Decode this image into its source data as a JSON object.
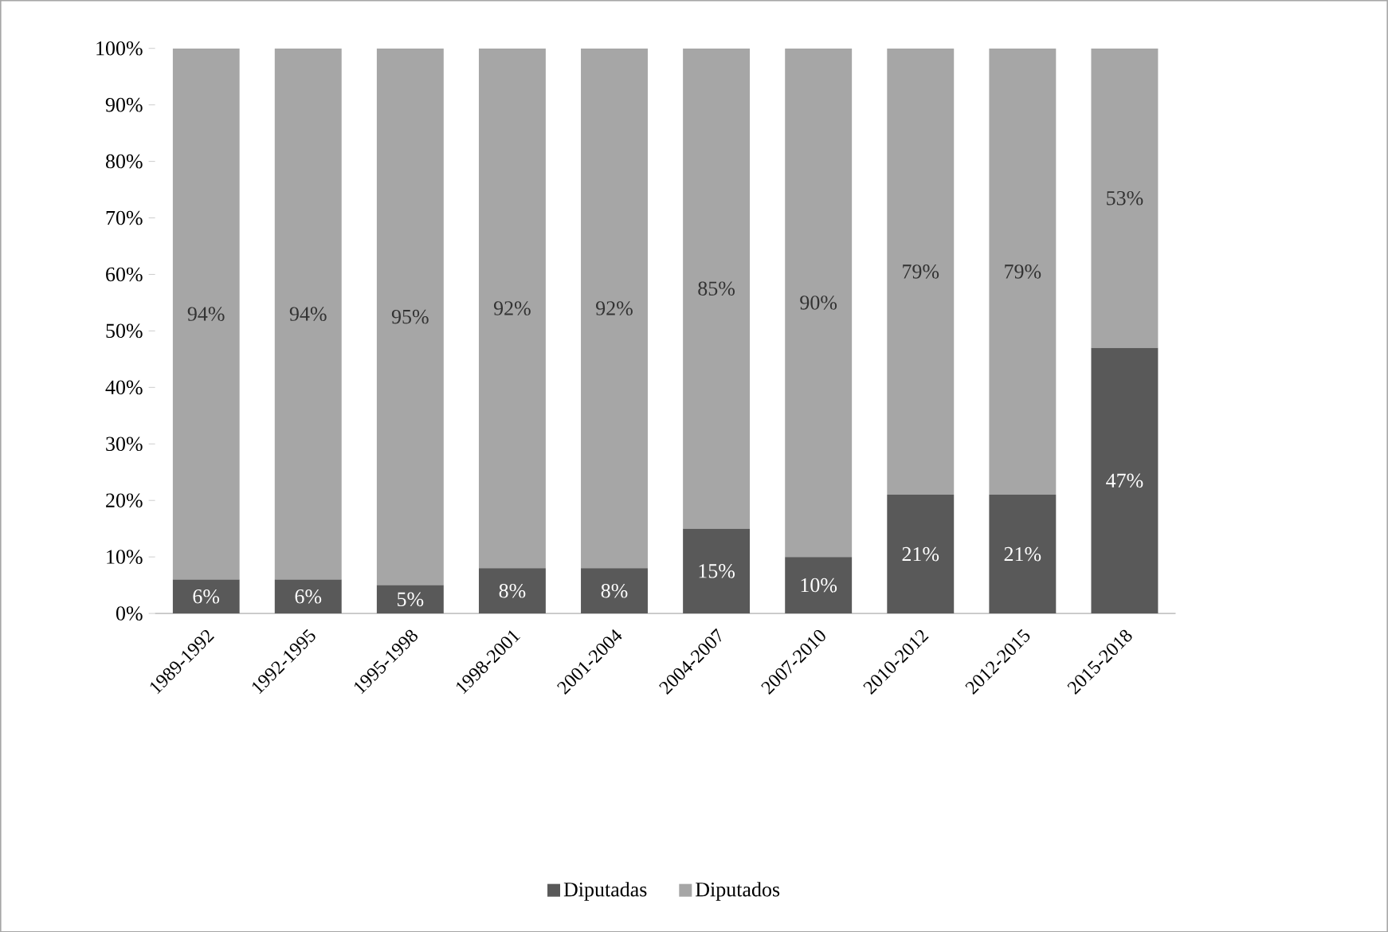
{
  "chart_data": {
    "type": "bar",
    "stacked": true,
    "categories": [
      "1989-1992",
      "1992-1995",
      "1995-1998",
      "1998-2001",
      "2001-2004",
      "2004-2007",
      "2007-2010",
      "2010-2012",
      "2012-2015",
      "2015-2018"
    ],
    "series": [
      {
        "name": "Diputadas",
        "color": "#595959",
        "values": [
          6,
          6,
          5,
          8,
          8,
          15,
          10,
          21,
          21,
          47
        ],
        "value_labels": [
          "6%",
          "6%",
          "5%",
          "8%",
          "8%",
          "15%",
          "10%",
          "21%",
          "21%",
          "47%"
        ]
      },
      {
        "name": "Diputados",
        "color": "#a6a6a6",
        "values": [
          94,
          94,
          95,
          92,
          92,
          85,
          90,
          79,
          79,
          53
        ],
        "value_labels": [
          "94%",
          "94%",
          "95%",
          "92%",
          "92%",
          "85%",
          "90%",
          "79%",
          "79%",
          "53%"
        ]
      }
    ],
    "ylim": [
      0,
      100
    ],
    "yticks": [
      {
        "value": 0,
        "label": "0%"
      },
      {
        "value": 10,
        "label": "10%"
      },
      {
        "value": 20,
        "label": "20%"
      },
      {
        "value": 30,
        "label": "30%"
      },
      {
        "value": 40,
        "label": "40%"
      },
      {
        "value": 50,
        "label": "50%"
      },
      {
        "value": 60,
        "label": "60%"
      },
      {
        "value": 70,
        "label": "70%"
      },
      {
        "value": 80,
        "label": "80%"
      },
      {
        "value": 90,
        "label": "90%"
      },
      {
        "value": 100,
        "label": "100%"
      }
    ],
    "grid": false,
    "legend": "bottom"
  }
}
